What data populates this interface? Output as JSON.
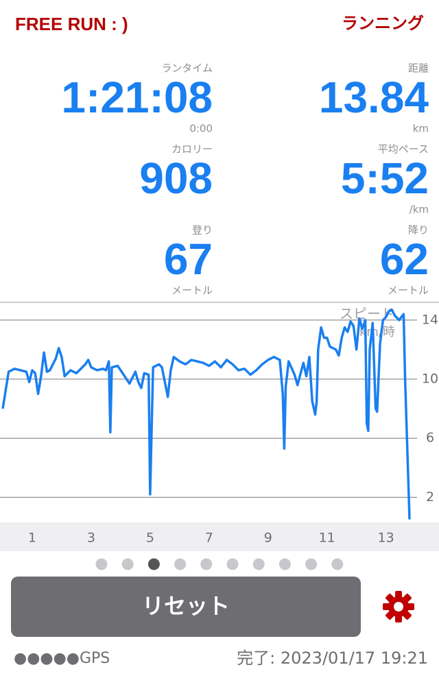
{
  "header": {
    "title": "FREE RUN : )",
    "mode": "ランニング"
  },
  "stats": [
    {
      "label": "ランタイム",
      "value": "1:21:08",
      "unit": "0:00"
    },
    {
      "label": "距離",
      "value": "13.84",
      "unit": "km"
    },
    {
      "label": "カロリー",
      "value": "908"
    },
    {
      "label": "平均ペース",
      "value": "5:52",
      "unit": "/km"
    },
    {
      "label": "登り",
      "value": "67",
      "unit": "メートル"
    },
    {
      "label": "降り",
      "value": "62",
      "unit": "メートル"
    }
  ],
  "chart_data": {
    "type": "line",
    "title": "スピード",
    "y_label": "km/時",
    "x": [
      0,
      0.2,
      0.4,
      0.6,
      0.8,
      0.9,
      1.0,
      1.1,
      1.2,
      1.3,
      1.4,
      1.5,
      1.6,
      1.8,
      1.9,
      2.0,
      2.1,
      2.3,
      2.5,
      2.7,
      2.8,
      2.9,
      3.0,
      3.2,
      3.4,
      3.5,
      3.6,
      3.65,
      3.7,
      3.9,
      4.1,
      4.3,
      4.5,
      4.6,
      4.7,
      4.8,
      4.95,
      5.0,
      5.1,
      5.3,
      5.4,
      5.6,
      5.7,
      5.8,
      6.0,
      6.2,
      6.4,
      6.6,
      6.8,
      7.0,
      7.2,
      7.4,
      7.6,
      7.8,
      8.0,
      8.2,
      8.4,
      8.6,
      8.8,
      9.0,
      9.2,
      9.4,
      9.5,
      9.55,
      9.6,
      9.7,
      9.9,
      10.0,
      10.2,
      10.3,
      10.4,
      10.5,
      10.6,
      10.65,
      10.7,
      10.8,
      10.9,
      11.0,
      11.1,
      11.3,
      11.4,
      11.5,
      11.6,
      11.7,
      11.8,
      11.9,
      12.0,
      12.1,
      12.2,
      12.3,
      12.35,
      12.4,
      12.45,
      12.55,
      12.65,
      12.7,
      12.8,
      12.9,
      13.0,
      13.1,
      13.2,
      13.3,
      13.45,
      13.6,
      13.65,
      13.8
    ],
    "series": [
      {
        "name": "スピード",
        "color": "#1a7ff0",
        "values": [
          8.0,
          10.5,
          10.7,
          10.6,
          10.5,
          9.8,
          10.6,
          10.4,
          9.0,
          10.2,
          11.8,
          10.5,
          10.6,
          11.4,
          12.1,
          11.5,
          10.2,
          10.6,
          10.4,
          10.8,
          11.0,
          11.3,
          10.8,
          10.6,
          10.7,
          10.6,
          11.2,
          6.4,
          10.8,
          10.9,
          10.3,
          9.7,
          10.5,
          9.8,
          9.4,
          10.4,
          10.3,
          2.2,
          10.8,
          11.0,
          10.8,
          8.8,
          10.6,
          11.5,
          11.2,
          11.0,
          11.3,
          11.2,
          11.1,
          10.9,
          11.2,
          10.8,
          11.3,
          11.0,
          10.6,
          10.7,
          10.3,
          10.6,
          11.0,
          11.3,
          11.5,
          11.3,
          9.0,
          5.3,
          9.5,
          11.2,
          10.3,
          9.6,
          11.1,
          10.2,
          11.5,
          8.5,
          7.6,
          8.5,
          12.0,
          13.5,
          12.8,
          12.8,
          12.2,
          12.0,
          11.6,
          12.8,
          13.5,
          13.2,
          13.9,
          13.6,
          12.0,
          14.1,
          13.4,
          14.0,
          7.0,
          6.5,
          12.0,
          13.8,
          8.0,
          7.8,
          12.4,
          14.0,
          14.2,
          14.6,
          14.7,
          14.3,
          14.0,
          14.4,
          10.0,
          0.5
        ]
      }
    ],
    "xlim": [
      0,
      14.8
    ],
    "xticks": [
      1,
      3,
      5,
      7,
      9,
      11,
      13
    ],
    "ylim": [
      0.3,
      15.2
    ],
    "yticks": [
      2,
      6,
      10,
      14
    ],
    "grid": true
  },
  "pager": {
    "count": 10,
    "active": 2
  },
  "button": {
    "label": "リセット"
  },
  "footer": {
    "gps": "●●●●●GPS",
    "status": "完了: 2023/01/17 19:21"
  }
}
